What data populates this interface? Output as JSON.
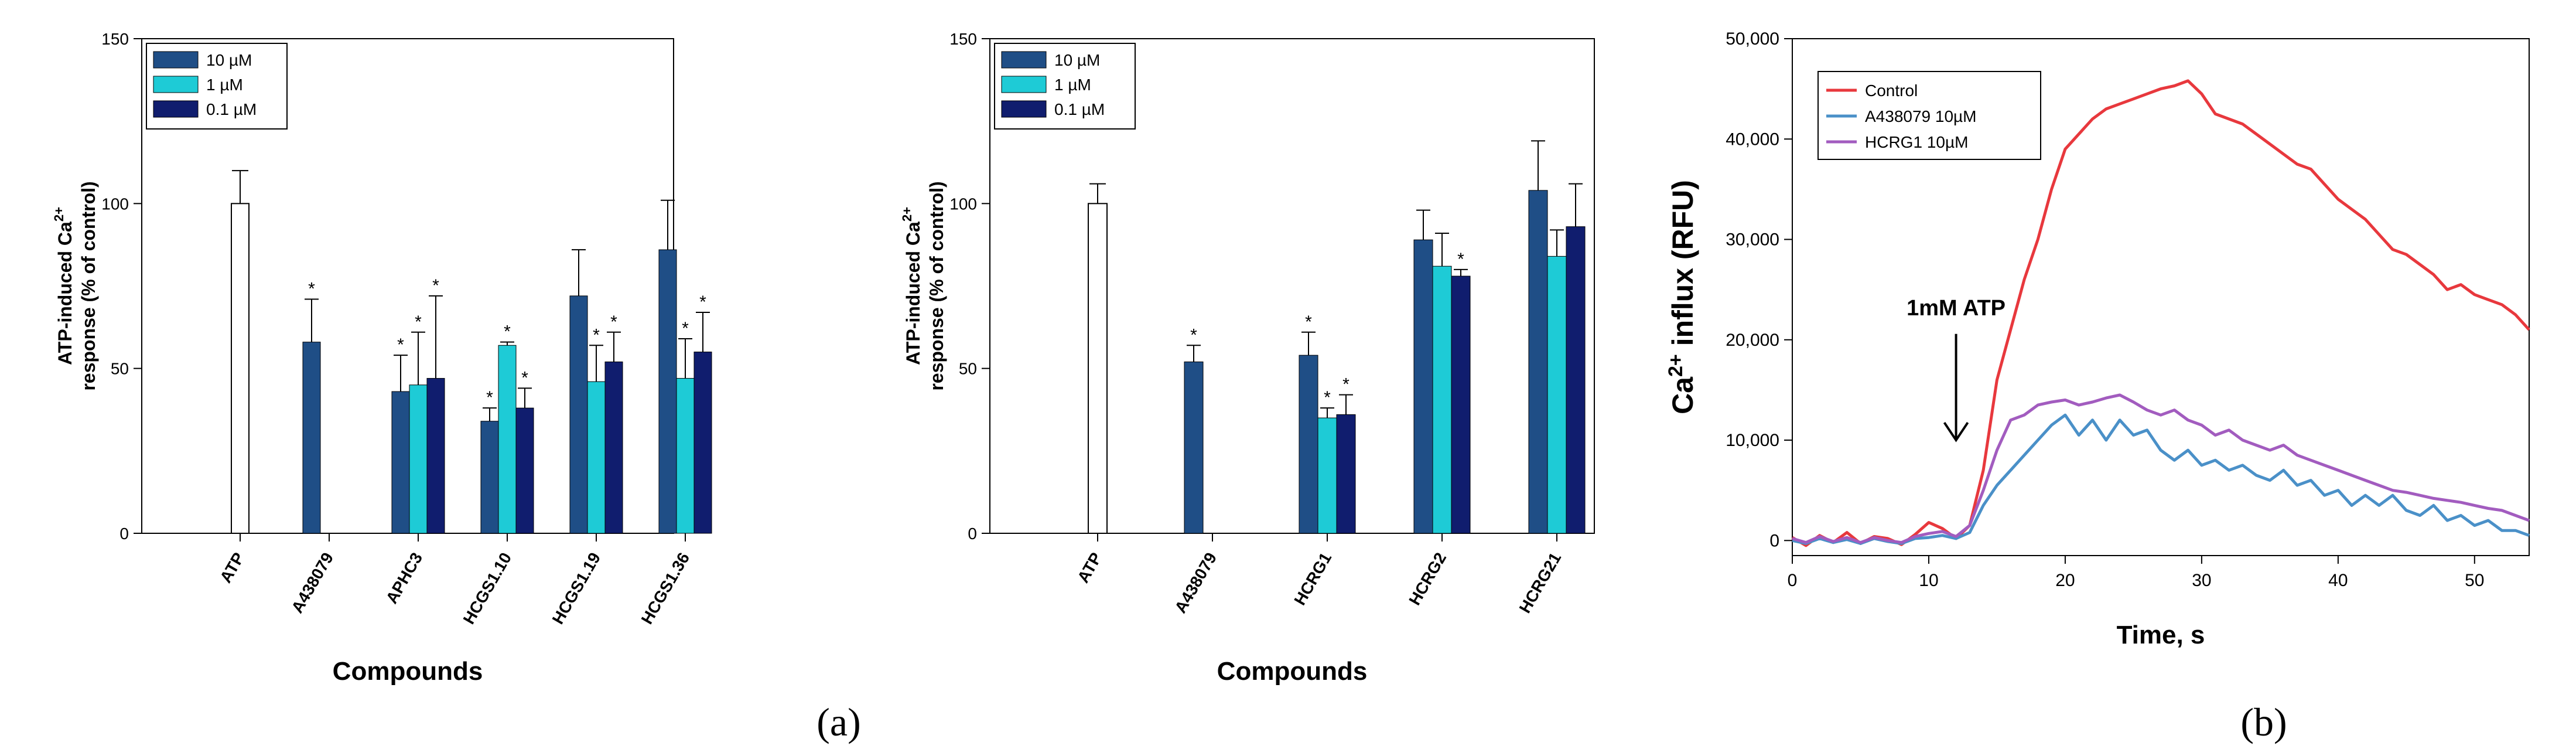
{
  "figure": {
    "label_a": "(a)",
    "label_b": "(b)"
  },
  "chart_data": [
    {
      "type": "bar",
      "panel": "a-left",
      "ylabel_line1": "ATP-induced Ca",
      "ylabel_sup": "2+",
      "ylabel_line2": "response (% of control)",
      "xlabel": "Compounds",
      "ylim": [
        0,
        150
      ],
      "yticks": [
        0,
        50,
        100,
        150
      ],
      "categories": [
        "ATP",
        "A438079",
        "APHC3",
        "HCGS1.10",
        "HCGS1.19",
        "HCGS1.36"
      ],
      "legend": [
        "10 µM",
        "1 µM",
        "0.1 µM"
      ],
      "legend_position": "top-left",
      "control": {
        "category": "ATP",
        "value": 100,
        "error": 10
      },
      "series": [
        {
          "name": "10 µM",
          "color": "#1f4e86",
          "values": [
            null,
            58,
            43,
            34,
            72,
            86
          ],
          "errors": [
            null,
            13,
            11,
            4,
            14,
            15
          ],
          "sig": [
            false,
            true,
            true,
            true,
            false,
            false
          ]
        },
        {
          "name": "1 µM",
          "color": "#1ecbd6",
          "values": [
            null,
            null,
            45,
            57,
            46,
            47
          ],
          "errors": [
            null,
            null,
            16,
            1,
            11,
            12
          ],
          "sig": [
            false,
            false,
            true,
            true,
            true,
            true
          ]
        },
        {
          "name": "0.1 µM",
          "color": "#101d6e",
          "values": [
            null,
            null,
            47,
            38,
            52,
            55
          ],
          "errors": [
            null,
            null,
            25,
            6,
            9,
            12
          ],
          "sig": [
            false,
            false,
            true,
            true,
            true,
            true
          ]
        }
      ]
    },
    {
      "type": "bar",
      "panel": "a-right",
      "ylabel_line1": "ATP-induced Ca",
      "ylabel_sup": "2+",
      "ylabel_line2": "response (% of control)",
      "xlabel": "Compounds",
      "ylim": [
        0,
        150
      ],
      "yticks": [
        0,
        50,
        100,
        150
      ],
      "categories": [
        "ATP",
        "A438079",
        "HCRG1",
        "HCRG2",
        "HCRG21"
      ],
      "legend": [
        "10 µM",
        "1 µM",
        "0.1 µM"
      ],
      "legend_position": "top-left",
      "control": {
        "category": "ATP",
        "value": 100,
        "error": 6
      },
      "series": [
        {
          "name": "10 µM",
          "color": "#1f4e86",
          "values": [
            null,
            52,
            54,
            89,
            104
          ],
          "errors": [
            null,
            5,
            7,
            9,
            15
          ],
          "sig": [
            false,
            true,
            true,
            false,
            false
          ]
        },
        {
          "name": "1 µM",
          "color": "#1ecbd6",
          "values": [
            null,
            null,
            35,
            81,
            84
          ],
          "errors": [
            null,
            null,
            3,
            10,
            8
          ],
          "sig": [
            false,
            false,
            true,
            false,
            false
          ]
        },
        {
          "name": "0.1 µM",
          "color": "#101d6e",
          "values": [
            null,
            null,
            36,
            78,
            93
          ],
          "errors": [
            null,
            null,
            6,
            2,
            13
          ],
          "sig": [
            false,
            false,
            true,
            true,
            false
          ]
        }
      ]
    },
    {
      "type": "line",
      "panel": "b",
      "ylabel_pre": "Ca",
      "ylabel_sup": "2+",
      "ylabel_post": " influx (RFU)",
      "xlabel": "Time, s",
      "xlim": [
        0,
        54
      ],
      "ylim": [
        -1500,
        50000
      ],
      "xticks": [
        0,
        10,
        20,
        30,
        40,
        50
      ],
      "yticks": [
        0,
        10000,
        20000,
        30000,
        40000,
        50000
      ],
      "ytick_labels": [
        "0",
        "10,000",
        "20,000",
        "30,000",
        "40,000",
        "50,000"
      ],
      "annotation": {
        "text": "1mM ATP",
        "x": 12,
        "y_top": 20000,
        "y_bottom": 10000
      },
      "legend_position": "top-left",
      "series": [
        {
          "name": "Control",
          "color": "#e8383d",
          "x": [
            0,
            1,
            2,
            3,
            4,
            5,
            6,
            7,
            8,
            9,
            10,
            11,
            12,
            13,
            14,
            15,
            16,
            17,
            18,
            19,
            20,
            21,
            22,
            23,
            24,
            25,
            26,
            27,
            28,
            29,
            30,
            31,
            32,
            33,
            34,
            35,
            36,
            37,
            38,
            39,
            40,
            41,
            42,
            43,
            44,
            45,
            46,
            47,
            48,
            49,
            50,
            51,
            52,
            53,
            54
          ],
          "y": [
            300,
            -500,
            500,
            -200,
            800,
            -300,
            400,
            200,
            -400,
            600,
            1800,
            1200,
            200,
            1500,
            7000,
            16000,
            21000,
            26000,
            30000,
            35000,
            39000,
            40500,
            42000,
            43000,
            43500,
            44000,
            44500,
            45000,
            45300,
            45800,
            44500,
            42500,
            42000,
            41500,
            40500,
            39500,
            38500,
            37500,
            37000,
            35500,
            34000,
            33000,
            32000,
            30500,
            29000,
            28500,
            27500,
            26500,
            25000,
            25500,
            24500,
            24000,
            23500,
            22500,
            21000
          ]
        },
        {
          "name": "A438079 10µM",
          "color": "#4a90c8",
          "x": [
            0,
            1,
            2,
            3,
            4,
            5,
            6,
            7,
            8,
            9,
            10,
            11,
            12,
            13,
            14,
            15,
            16,
            17,
            18,
            19,
            20,
            21,
            22,
            23,
            24,
            25,
            26,
            27,
            28,
            29,
            30,
            31,
            32,
            33,
            34,
            35,
            36,
            37,
            38,
            39,
            40,
            41,
            42,
            43,
            44,
            45,
            46,
            47,
            48,
            49,
            50,
            51,
            52,
            53,
            54
          ],
          "y": [
            0,
            -300,
            200,
            -200,
            100,
            -300,
            200,
            -100,
            -300,
            200,
            300,
            500,
            200,
            800,
            3500,
            5500,
            7000,
            8500,
            10000,
            11500,
            12500,
            10500,
            12000,
            10000,
            12000,
            10500,
            11000,
            9000,
            8000,
            9000,
            7500,
            8000,
            7000,
            7500,
            6500,
            6000,
            7000,
            5500,
            6000,
            4500,
            5000,
            3500,
            4500,
            3500,
            4500,
            3000,
            2500,
            3500,
            2000,
            2500,
            1500,
            2000,
            1000,
            1000,
            500
          ]
        },
        {
          "name": "HCRG1 10µM",
          "color": "#a25cbf",
          "x": [
            0,
            1,
            2,
            3,
            4,
            5,
            6,
            7,
            8,
            9,
            10,
            11,
            12,
            13,
            14,
            15,
            16,
            17,
            18,
            19,
            20,
            21,
            22,
            23,
            24,
            25,
            26,
            27,
            28,
            29,
            30,
            31,
            32,
            33,
            34,
            35,
            36,
            37,
            38,
            39,
            40,
            41,
            42,
            43,
            44,
            45,
            46,
            47,
            48,
            49,
            50,
            51,
            52,
            53,
            54
          ],
          "y": [
            200,
            -200,
            400,
            -100,
            300,
            -200,
            300,
            0,
            -200,
            400,
            700,
            900,
            400,
            1500,
            5000,
            9000,
            12000,
            12500,
            13500,
            13800,
            14000,
            13500,
            13800,
            14200,
            14500,
            13800,
            13000,
            12500,
            13000,
            12000,
            11500,
            10500,
            11000,
            10000,
            9500,
            9000,
            9500,
            8500,
            8000,
            7500,
            7000,
            6500,
            6000,
            5500,
            5000,
            4800,
            4500,
            4200,
            4000,
            3800,
            3500,
            3200,
            3000,
            2500,
            2000
          ]
        }
      ]
    }
  ]
}
